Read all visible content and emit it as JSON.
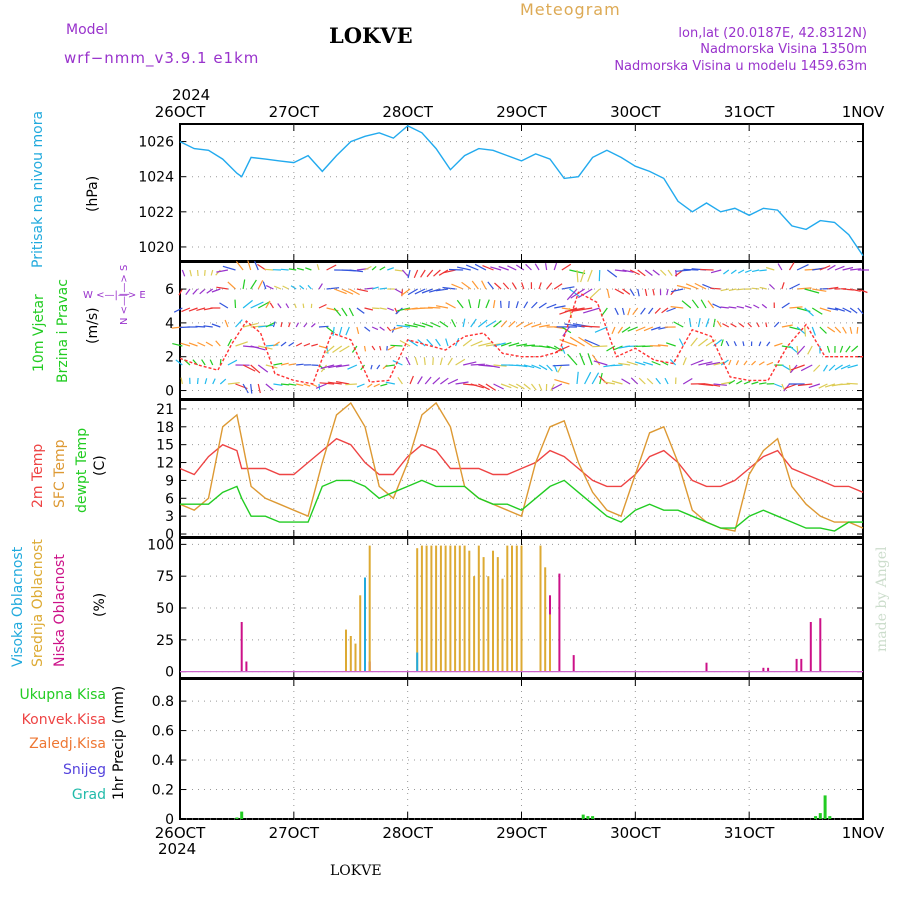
{
  "header": {
    "model_label": "Model",
    "model_name": "wrf−nmm_v3.9.1 e1km",
    "station": "LOKVE",
    "meteogram": "Meteogram",
    "lonlat": "lon,lat (20.0187E, 42.8312N)",
    "alt1": "Nadmorska Visina 1350m",
    "alt2": "Nadmorska Visina u modelu 1459.63m",
    "footer_station": "LOKVE",
    "watermark": "made by Angel"
  },
  "time_axis": {
    "year": "2024",
    "ticks": [
      "26OCT",
      "27OCT",
      "28OCT",
      "29OCT",
      "30OCT",
      "31OCT",
      "1NOV"
    ],
    "range_hours": [
      0,
      144
    ]
  },
  "colors": {
    "pressure": "#22aaee",
    "t2m": "#ee4444",
    "sfc": "#dd9933",
    "dew": "#22cc22",
    "low_cloud": "#cc1188",
    "mid_cloud": "#ddaa33",
    "high_cloud": "#22aadd",
    "wind_speed": "#ff3333",
    "purple": "#9933cc",
    "grid": "#999999"
  },
  "chart_data": [
    {
      "type": "line",
      "panel": "pressure",
      "ylabel_1": "Pritisak na nivou mora",
      "ylabel_2": "(hPa)",
      "yticks": [
        "1026",
        "1024",
        "1022",
        "1020"
      ],
      "ylim": [
        1019.2,
        1027.0
      ],
      "x_hours": [
        0,
        3,
        6,
        9,
        12,
        13,
        15,
        18,
        21,
        24,
        27,
        30,
        33,
        36,
        39,
        42,
        45,
        48,
        51,
        54,
        57,
        60,
        63,
        66,
        69,
        72,
        75,
        78,
        81,
        84,
        87,
        90,
        93,
        96,
        99,
        102,
        105,
        108,
        111,
        114,
        117,
        120,
        123,
        126,
        129,
        132,
        135,
        138,
        141,
        144
      ],
      "values": [
        1026.0,
        1025.6,
        1025.5,
        1025.0,
        1024.2,
        1024.0,
        1025.1,
        1025.0,
        1024.9,
        1024.8,
        1025.2,
        1024.3,
        1025.2,
        1026.0,
        1026.3,
        1026.5,
        1026.2,
        1026.9,
        1026.5,
        1025.6,
        1024.4,
        1025.2,
        1025.6,
        1025.5,
        1025.2,
        1024.9,
        1025.3,
        1025.0,
        1023.9,
        1024.0,
        1025.1,
        1025.5,
        1025.1,
        1024.6,
        1024.3,
        1023.9,
        1022.6,
        1022.0,
        1022.5,
        1022.0,
        1022.2,
        1021.8,
        1022.2,
        1022.1,
        1021.2,
        1021.0,
        1021.5,
        1021.4,
        1020.7,
        1019.5
      ],
      "color": "#22aaee"
    },
    {
      "type": "line",
      "panel": "wind",
      "ylabel_1": "10m Vjetar",
      "ylabel_2": "Brzina i Pravac",
      "ylabel_3": "(m/s)",
      "compass_ns": "N <—|—> S",
      "compass_we": "W <—|—> E",
      "yticks": [
        "0",
        "2",
        "4",
        "6"
      ],
      "ylim": [
        -0.5,
        7.6
      ],
      "x_hours": [
        0,
        4,
        8,
        11,
        14,
        17,
        20,
        24,
        28,
        32,
        36,
        40,
        44,
        48,
        52,
        56,
        60,
        64,
        68,
        72,
        76,
        80,
        84,
        88,
        92,
        96,
        100,
        104,
        108,
        112,
        116,
        120,
        124,
        128,
        132,
        136,
        140,
        144
      ],
      "values": [
        1.9,
        1.5,
        1.2,
        2.8,
        4.1,
        3.4,
        1.0,
        0.6,
        0.4,
        3.4,
        3.0,
        0.5,
        0.6,
        3.0,
        2.7,
        2.4,
        3.2,
        3.4,
        2.2,
        2.0,
        2.0,
        2.3,
        5.8,
        5.2,
        2.0,
        2.5,
        1.8,
        1.6,
        3.6,
        3.2,
        0.8,
        0.6,
        0.6,
        2.6,
        3.9,
        2.0,
        2.0,
        2.0
      ],
      "color": "#ff3333"
    },
    {
      "type": "line",
      "panel": "temperature",
      "ylabel_1": "2m Temp",
      "ylabel_2": "SFC Temp",
      "ylabel_3": "dewpt Temp",
      "ylabel_4": "(C)",
      "yticks": [
        "0",
        "3",
        "6",
        "9",
        "12",
        "15",
        "18",
        "21"
      ],
      "ylim": [
        -0.5,
        22.5
      ],
      "x_hours": [
        0,
        3,
        6,
        9,
        12,
        13,
        15,
        18,
        21,
        24,
        27,
        30,
        33,
        36,
        39,
        42,
        45,
        48,
        51,
        54,
        57,
        60,
        63,
        66,
        69,
        72,
        75,
        78,
        81,
        84,
        87,
        90,
        93,
        96,
        99,
        102,
        105,
        108,
        111,
        114,
        117,
        120,
        123,
        126,
        129,
        132,
        135,
        138,
        141,
        144
      ],
      "series": [
        {
          "name": "2m Temp",
          "color": "#ee4444",
          "values": [
            11,
            10,
            13,
            15,
            14,
            11,
            11,
            11,
            10,
            10,
            12,
            14,
            16,
            15,
            12,
            10,
            10,
            13,
            15,
            14,
            11,
            11,
            11,
            10,
            10,
            11,
            12,
            14,
            13,
            11,
            9,
            8,
            8,
            10,
            13,
            14,
            12,
            9,
            8,
            8,
            9,
            11,
            13,
            14,
            11,
            10,
            9,
            8,
            8,
            7
          ]
        },
        {
          "name": "SFC Temp",
          "color": "#dd9933",
          "values": [
            5,
            4,
            6,
            18,
            20,
            16,
            8,
            6,
            5,
            4,
            3,
            12,
            20,
            22,
            18,
            8,
            6,
            12,
            20,
            22,
            18,
            8,
            6,
            5,
            4,
            3,
            12,
            18,
            19,
            12,
            7,
            4,
            3,
            10,
            17,
            18,
            12,
            4,
            2,
            1,
            0.5,
            10,
            14,
            16,
            8,
            5,
            3,
            2,
            2,
            1
          ]
        },
        {
          "name": "dewpt Temp",
          "color": "#22cc22",
          "values": [
            5,
            5,
            5,
            7,
            8,
            6,
            3,
            3,
            2,
            2,
            2,
            8,
            9,
            9,
            8,
            6,
            7,
            8,
            9,
            8,
            8,
            8,
            6,
            5,
            5,
            4,
            6,
            8,
            9,
            7,
            5,
            3,
            2,
            4,
            5,
            4,
            4,
            3,
            2,
            1,
            1,
            3,
            4,
            3,
            2,
            1,
            1,
            0.5,
            2,
            2
          ]
        }
      ]
    },
    {
      "type": "bar",
      "panel": "clouds",
      "ylabel_1": "Visoka Oblacnost",
      "ylabel_2": "Srednja Oblacnost",
      "ylabel_3": "Niska Oblacnost",
      "ylabel_4": "(%)",
      "yticks": [
        "0",
        "25",
        "50",
        "75",
        "100"
      ],
      "ylim": [
        -5,
        105
      ],
      "series": [
        {
          "name": "Niska Oblacnost",
          "color": "#cc1188",
          "x_hours": [
            13,
            14,
            40,
            78,
            80,
            83,
            88,
            111,
            123,
            124,
            130,
            131,
            133,
            135
          ],
          "values": [
            39,
            8,
            8,
            60,
            77,
            13,
            0,
            7,
            3,
            3,
            10,
            10,
            39,
            42
          ]
        },
        {
          "name": "Srednja Oblacnost",
          "color": "#ddaa33",
          "x_hours": [
            35,
            36,
            37,
            38,
            39,
            40,
            50,
            51,
            52,
            53,
            54,
            55,
            56,
            57,
            58,
            59,
            60,
            61,
            62,
            63,
            64,
            65,
            66,
            67,
            68,
            69,
            70,
            71,
            72,
            76,
            77,
            78
          ],
          "values": [
            33,
            28,
            22,
            60,
            74,
            99,
            97,
            99,
            99,
            99,
            99,
            99,
            99,
            99,
            99,
            99,
            99,
            95,
            75,
            99,
            90,
            75,
            95,
            90,
            73,
            99,
            99,
            99,
            99,
            99,
            82,
            45
          ]
        },
        {
          "name": "Visoka Oblacnost",
          "color": "#22aadd",
          "x_hours": [
            39,
            50
          ],
          "values": [
            74,
            15
          ]
        }
      ]
    },
    {
      "type": "bar",
      "panel": "precipitation",
      "ylabel_1": "1hr Precip",
      "ylabel_2": "(mm)",
      "yticks": [
        "0",
        "0.2",
        "0.4",
        "0.6",
        "0.8"
      ],
      "ylim": [
        0,
        0.95
      ],
      "legend": [
        "Ukupna Kisa",
        "Konvek.Kisa",
        "Zaledj.Kisa",
        "Snijeg",
        "Grad"
      ],
      "legend_colors": [
        "#22cc22",
        "#ee4444",
        "#ee7733",
        "#5544dd",
        "#22bbaa"
      ],
      "series": [
        {
          "name": "Ukupna Kisa",
          "color": "#22cc22",
          "x_hours": [
            12,
            13,
            85,
            86,
            87,
            134,
            135,
            136,
            137
          ],
          "values": [
            0.01,
            0.05,
            0.03,
            0.02,
            0.02,
            0.02,
            0.04,
            0.16,
            0.02
          ]
        }
      ]
    }
  ]
}
